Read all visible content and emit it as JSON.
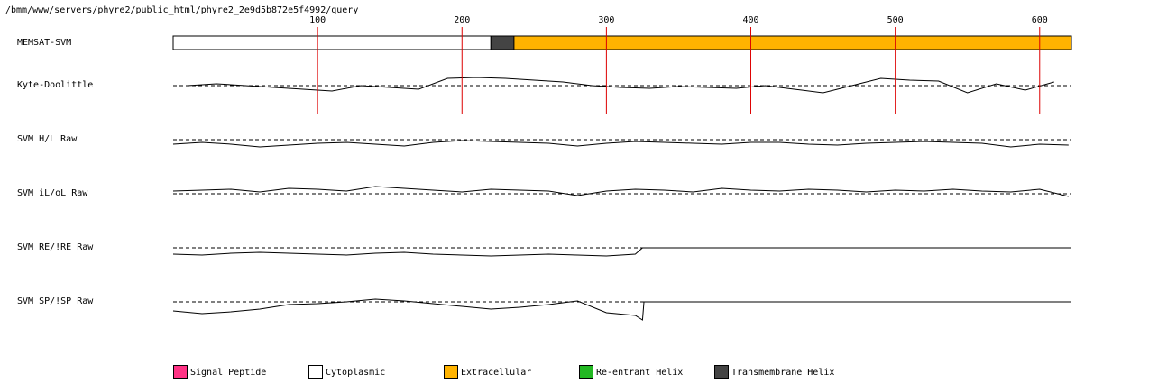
{
  "chart_data": {
    "type": "topology",
    "title": "/bmm/www/servers/phyre2/public_html/phyre2_2e9d5b872e5f4992/query",
    "xlim": [
      0,
      622
    ],
    "xticks": [
      100,
      200,
      300,
      400,
      500,
      600
    ],
    "tick_color": "#dd0000",
    "topology": {
      "name": "MEMSAT-SVM",
      "segments": [
        {
          "start": 0,
          "end": 220,
          "color": "#ffffff"
        },
        {
          "start": 220,
          "end": 236,
          "color": "#444444"
        },
        {
          "start": 236,
          "end": 622,
          "color": "#ffb300"
        }
      ]
    },
    "series": [
      {
        "name": "Kyte-Doolittle",
        "ylim": [
          -20,
          20
        ],
        "x": [
          10,
          30,
          50,
          70,
          90,
          110,
          130,
          150,
          170,
          190,
          210,
          230,
          250,
          270,
          290,
          310,
          330,
          350,
          370,
          390,
          410,
          430,
          450,
          470,
          490,
          510,
          530,
          550,
          570,
          590,
          610
        ],
        "values": [
          0,
          2,
          0,
          -2,
          -4,
          -6,
          0,
          -2,
          -4,
          8,
          9,
          8,
          6,
          4,
          0,
          -2,
          -3,
          -1,
          -2,
          -3,
          0,
          -4,
          -8,
          0,
          8,
          6,
          5,
          -8,
          2,
          -5,
          4
        ]
      },
      {
        "name": "SVM H/L Raw",
        "ylim": [
          -20,
          20
        ],
        "x": [
          0,
          20,
          40,
          60,
          80,
          100,
          120,
          140,
          160,
          180,
          200,
          220,
          240,
          260,
          280,
          300,
          320,
          340,
          360,
          380,
          400,
          420,
          440,
          460,
          480,
          500,
          520,
          540,
          560,
          580,
          600,
          620
        ],
        "values": [
          -5,
          -3,
          -5,
          -8,
          -6,
          -4,
          -3,
          -5,
          -7,
          -3,
          -1,
          -2,
          -3,
          -4,
          -7,
          -4,
          -2,
          -3,
          -4,
          -5,
          -3,
          -3,
          -5,
          -6,
          -4,
          -3,
          -2,
          -3,
          -4,
          -8,
          -5,
          -6
        ]
      },
      {
        "name": "SVM iL/oL Raw",
        "ylim": [
          -20,
          20
        ],
        "x": [
          0,
          20,
          40,
          60,
          80,
          100,
          120,
          140,
          160,
          180,
          200,
          220,
          240,
          260,
          280,
          300,
          320,
          340,
          360,
          380,
          400,
          420,
          440,
          460,
          480,
          500,
          520,
          540,
          560,
          580,
          600,
          620
        ],
        "values": [
          3,
          4,
          5,
          2,
          6,
          5,
          3,
          8,
          6,
          4,
          2,
          5,
          4,
          3,
          -2,
          3,
          5,
          4,
          2,
          6,
          4,
          3,
          5,
          4,
          2,
          4,
          3,
          5,
          3,
          2,
          5,
          -3
        ]
      },
      {
        "name": "SVM RE/!RE Raw",
        "ylim": [
          -20,
          20
        ],
        "x": [
          0,
          20,
          40,
          60,
          80,
          100,
          120,
          140,
          160,
          180,
          200,
          220,
          240,
          260,
          280,
          300,
          320,
          325,
          622
        ],
        "values": [
          -7,
          -8,
          -6,
          -5,
          -6,
          -7,
          -8,
          -6,
          -5,
          -7,
          -8,
          -9,
          -8,
          -7,
          -8,
          -9,
          -7,
          0,
          0
        ]
      },
      {
        "name": "SVM SP/!SP Raw",
        "ylim": [
          -20,
          20
        ],
        "x": [
          0,
          20,
          40,
          60,
          80,
          100,
          120,
          140,
          160,
          180,
          200,
          220,
          240,
          260,
          280,
          300,
          320,
          325,
          326,
          622
        ],
        "values": [
          -10,
          -13,
          -11,
          -8,
          -3,
          -2,
          0,
          3,
          1,
          -2,
          -5,
          -8,
          -6,
          -3,
          1,
          -12,
          -15,
          -20,
          0,
          0
        ]
      }
    ],
    "legend": [
      {
        "name": "Signal Peptide",
        "color": "#ff3385"
      },
      {
        "name": "Cytoplasmic",
        "color": "#ffffff"
      },
      {
        "name": "Extracellular",
        "color": "#ffb300"
      },
      {
        "name": "Re-entrant Helix",
        "color": "#22b822"
      },
      {
        "name": "Transmembrane Helix",
        "color": "#444444"
      }
    ]
  }
}
